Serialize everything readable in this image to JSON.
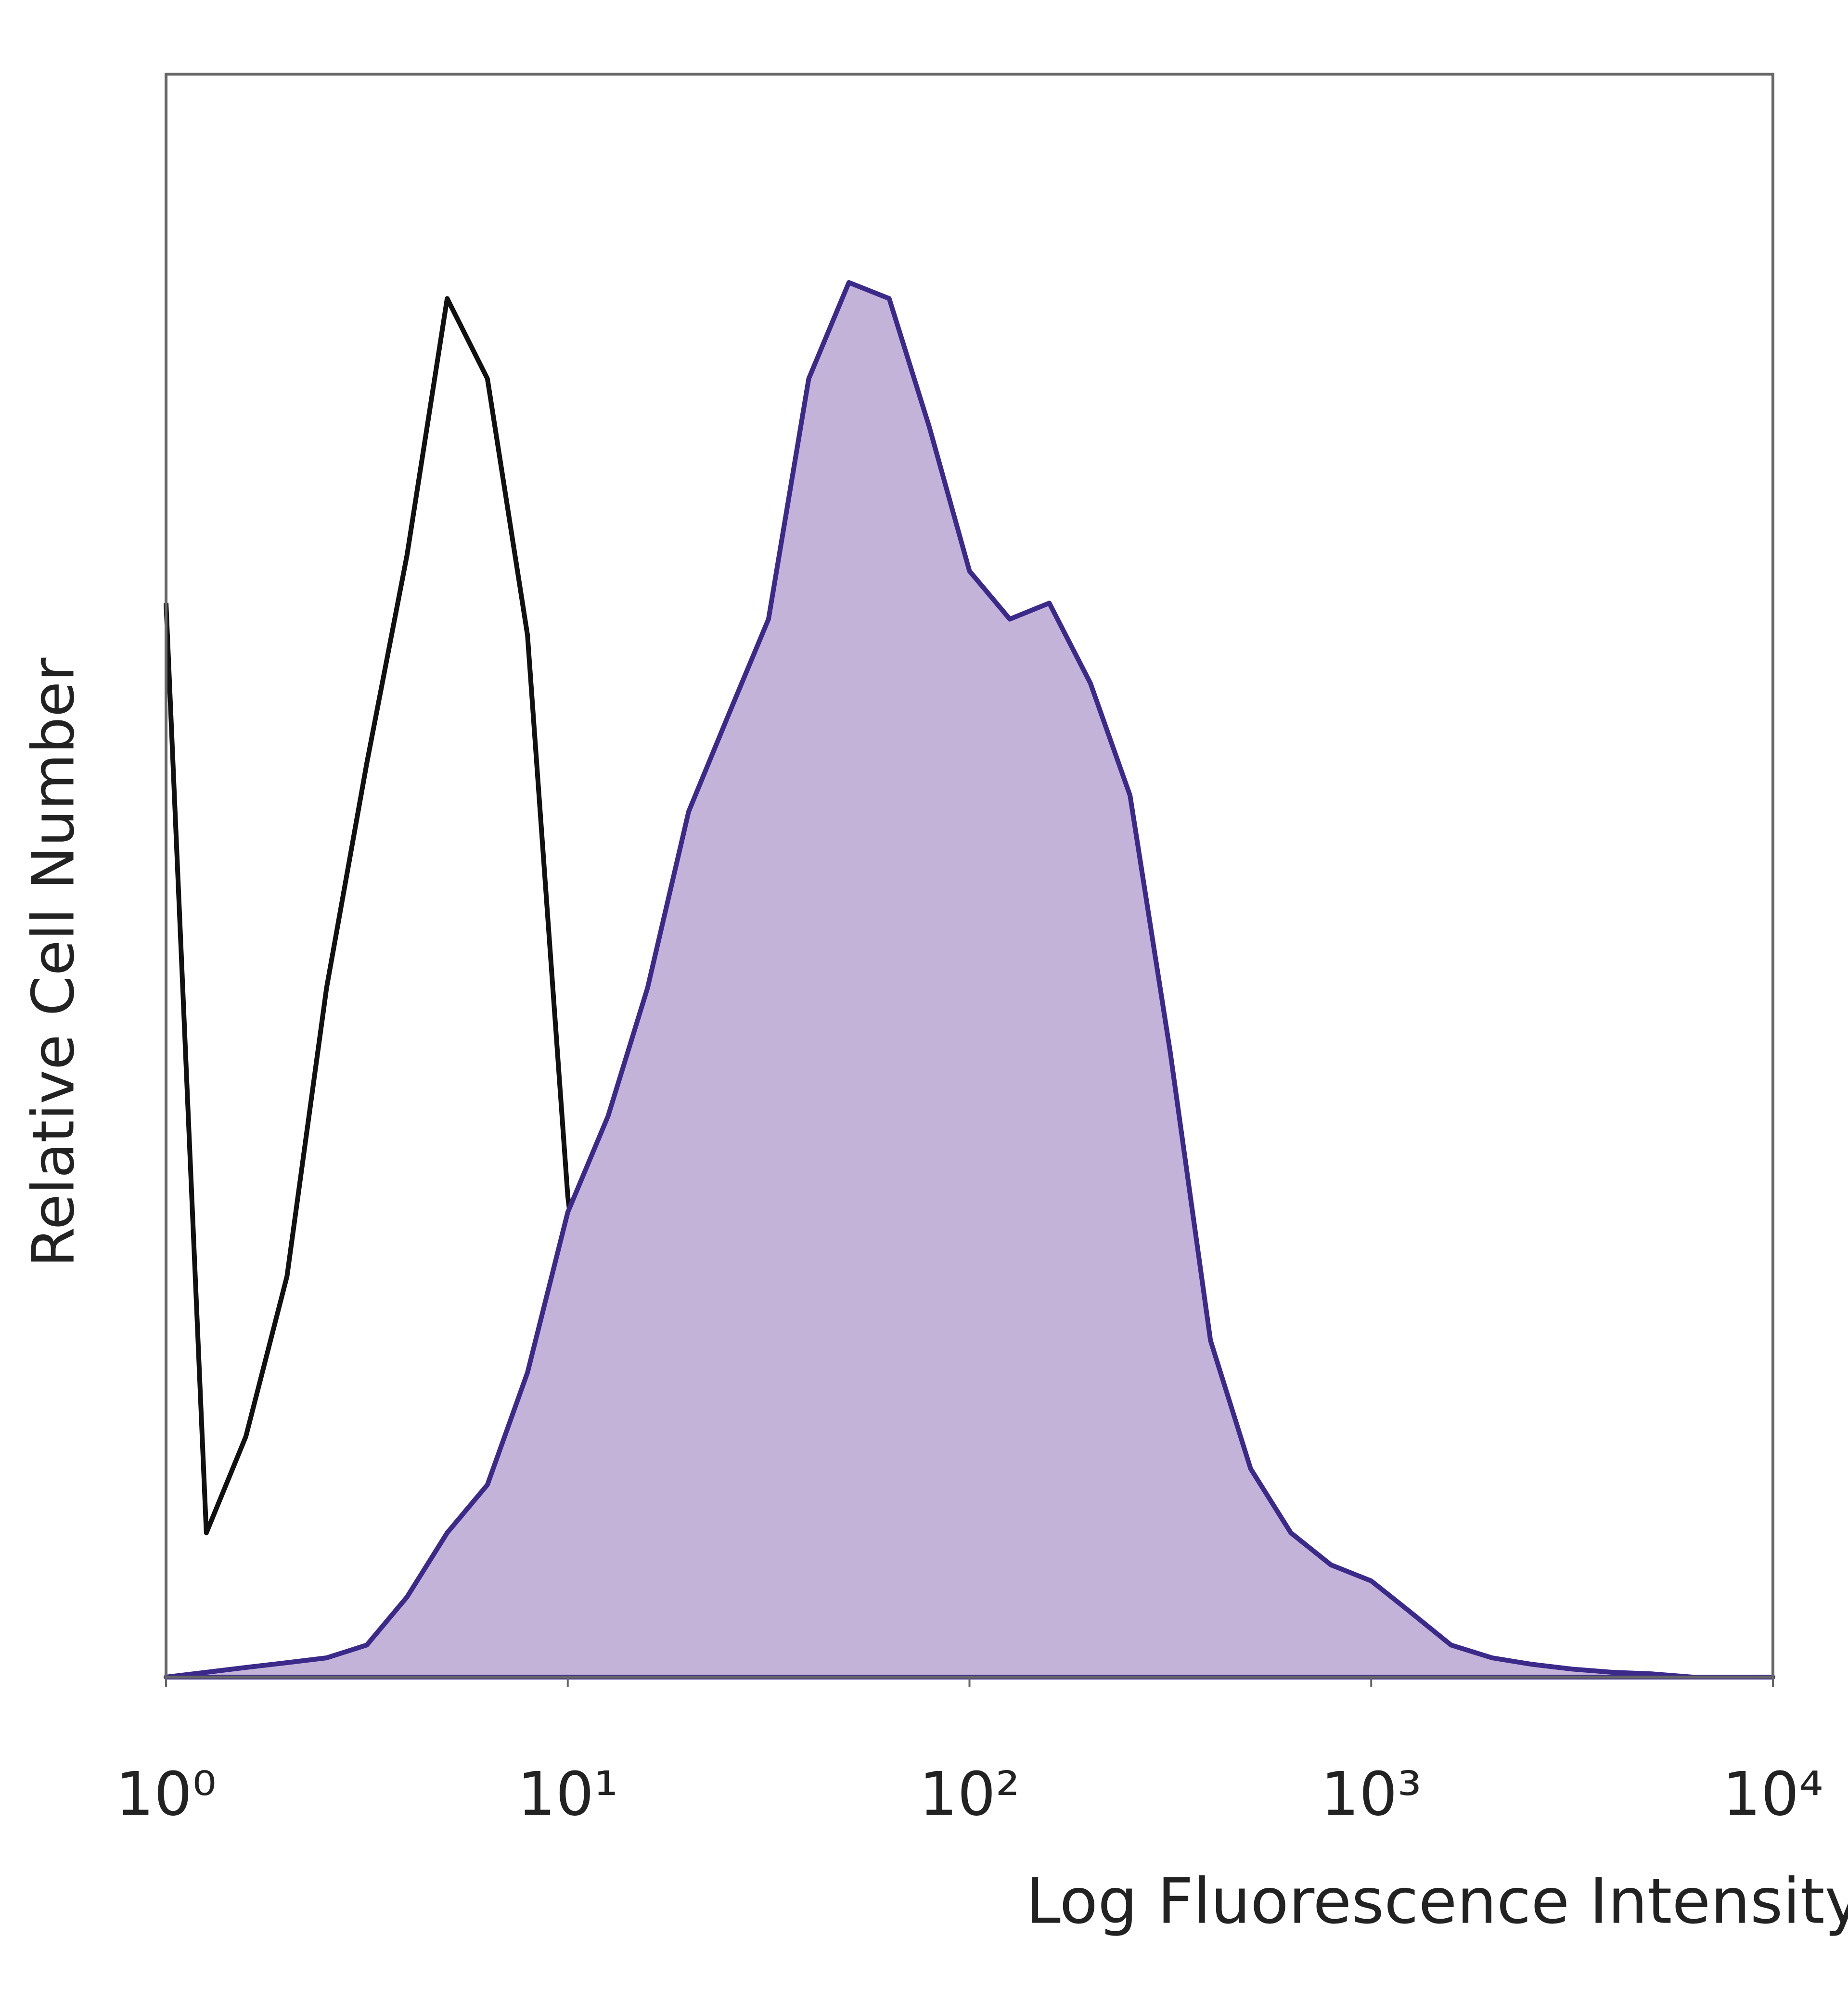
{
  "chart_data": {
    "type": "histogram-overlay",
    "xlabel": "Log Fluorescence Intensity",
    "ylabel": "Relative Cell Number",
    "xscale": "log",
    "xlim": [
      1,
      10000
    ],
    "xticks": [
      {
        "value": 1,
        "label": "10⁰"
      },
      {
        "value": 10,
        "label": "10¹"
      },
      {
        "value": 100,
        "label": "10²"
      },
      {
        "value": 1000,
        "label": "10³"
      },
      {
        "value": 10000,
        "label": "10⁴"
      }
    ],
    "ylim": [
      0,
      100
    ],
    "grid": false,
    "x": [
      1,
      1.26,
      1.58,
      2,
      2.51,
      3.16,
      3.98,
      5.01,
      6.31,
      7.94,
      10,
      12.6,
      15.8,
      20,
      25.1,
      31.6,
      39.8,
      50.1,
      63.1,
      79.4,
      100,
      126,
      158,
      200,
      251,
      316,
      398,
      501,
      631,
      794,
      1000,
      1260,
      1580,
      2000,
      2510,
      3160,
      3980,
      5010,
      6310,
      7940,
      10000
    ],
    "series": [
      {
        "color": "#111111",
        "fill": "none",
        "values": [
          67,
          9,
          15,
          25,
          43,
          57,
          70,
          86,
          81,
          65,
          30,
          9,
          1.6,
          0.5,
          0.2,
          0,
          0,
          0,
          0,
          0,
          0,
          0,
          0,
          0,
          0,
          0,
          0,
          0,
          0,
          0,
          0,
          0,
          0,
          0,
          0,
          0,
          0,
          0,
          0,
          0,
          0
        ]
      },
      {
        "color": "#3b2a8a",
        "fill": "#c3b3d8",
        "values": [
          0,
          0.3,
          0.6,
          0.9,
          1.2,
          2,
          5,
          9,
          12,
          19,
          29,
          35,
          43,
          54,
          60,
          66,
          81,
          87,
          86,
          78,
          69,
          66,
          67,
          62,
          55,
          39,
          21,
          13,
          9,
          7,
          6,
          4,
          2,
          1.2,
          0.8,
          0.5,
          0.3,
          0.2,
          0,
          0,
          0
        ]
      }
    ]
  }
}
